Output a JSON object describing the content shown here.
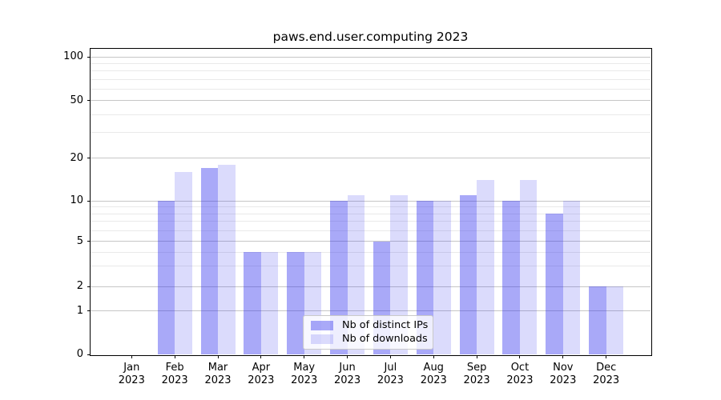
{
  "title": "paws.end.user.computing 2023",
  "chart_data": {
    "type": "bar",
    "title": "paws.end.user.computing 2023",
    "categories": [
      "Jan 2023",
      "Feb 2023",
      "Mar 2023",
      "Apr 2023",
      "May 2023",
      "Jun 2023",
      "Jul 2023",
      "Aug 2023",
      "Sep 2023",
      "Oct 2023",
      "Nov 2023",
      "Dec 2023"
    ],
    "series": [
      {
        "name": "Nb of distinct IPs",
        "color": "rgba(40,40,238,0.40)",
        "values": [
          0,
          10,
          17,
          4,
          4,
          10,
          5,
          10,
          11,
          10,
          8,
          2
        ]
      },
      {
        "name": "Nb of downloads",
        "color": "rgba(40,40,238,0.17)",
        "values": [
          0,
          16,
          18,
          4,
          4,
          11,
          11,
          10,
          14,
          14,
          10,
          2
        ]
      }
    ],
    "y_axis": {
      "ticks": [
        0,
        1,
        2,
        5,
        10,
        20,
        50,
        100
      ],
      "minor_ticks": [
        3,
        4,
        6,
        7,
        8,
        9,
        30,
        40,
        60,
        70,
        80,
        90
      ],
      "scale": "log above 1, linear 0-1 (symlog)",
      "range": [
        0,
        115
      ]
    },
    "x_axis": {
      "tick_label_line2": "2023"
    },
    "grid": true,
    "legend": {
      "position": "lower center",
      "entries": [
        "Nb of distinct IPs",
        "Nb of downloads"
      ]
    },
    "colors": {
      "major_grid": "#c6c6c6",
      "minor_grid": "#e9e9e9",
      "axis": "#000000",
      "background": "#ffffff"
    }
  }
}
